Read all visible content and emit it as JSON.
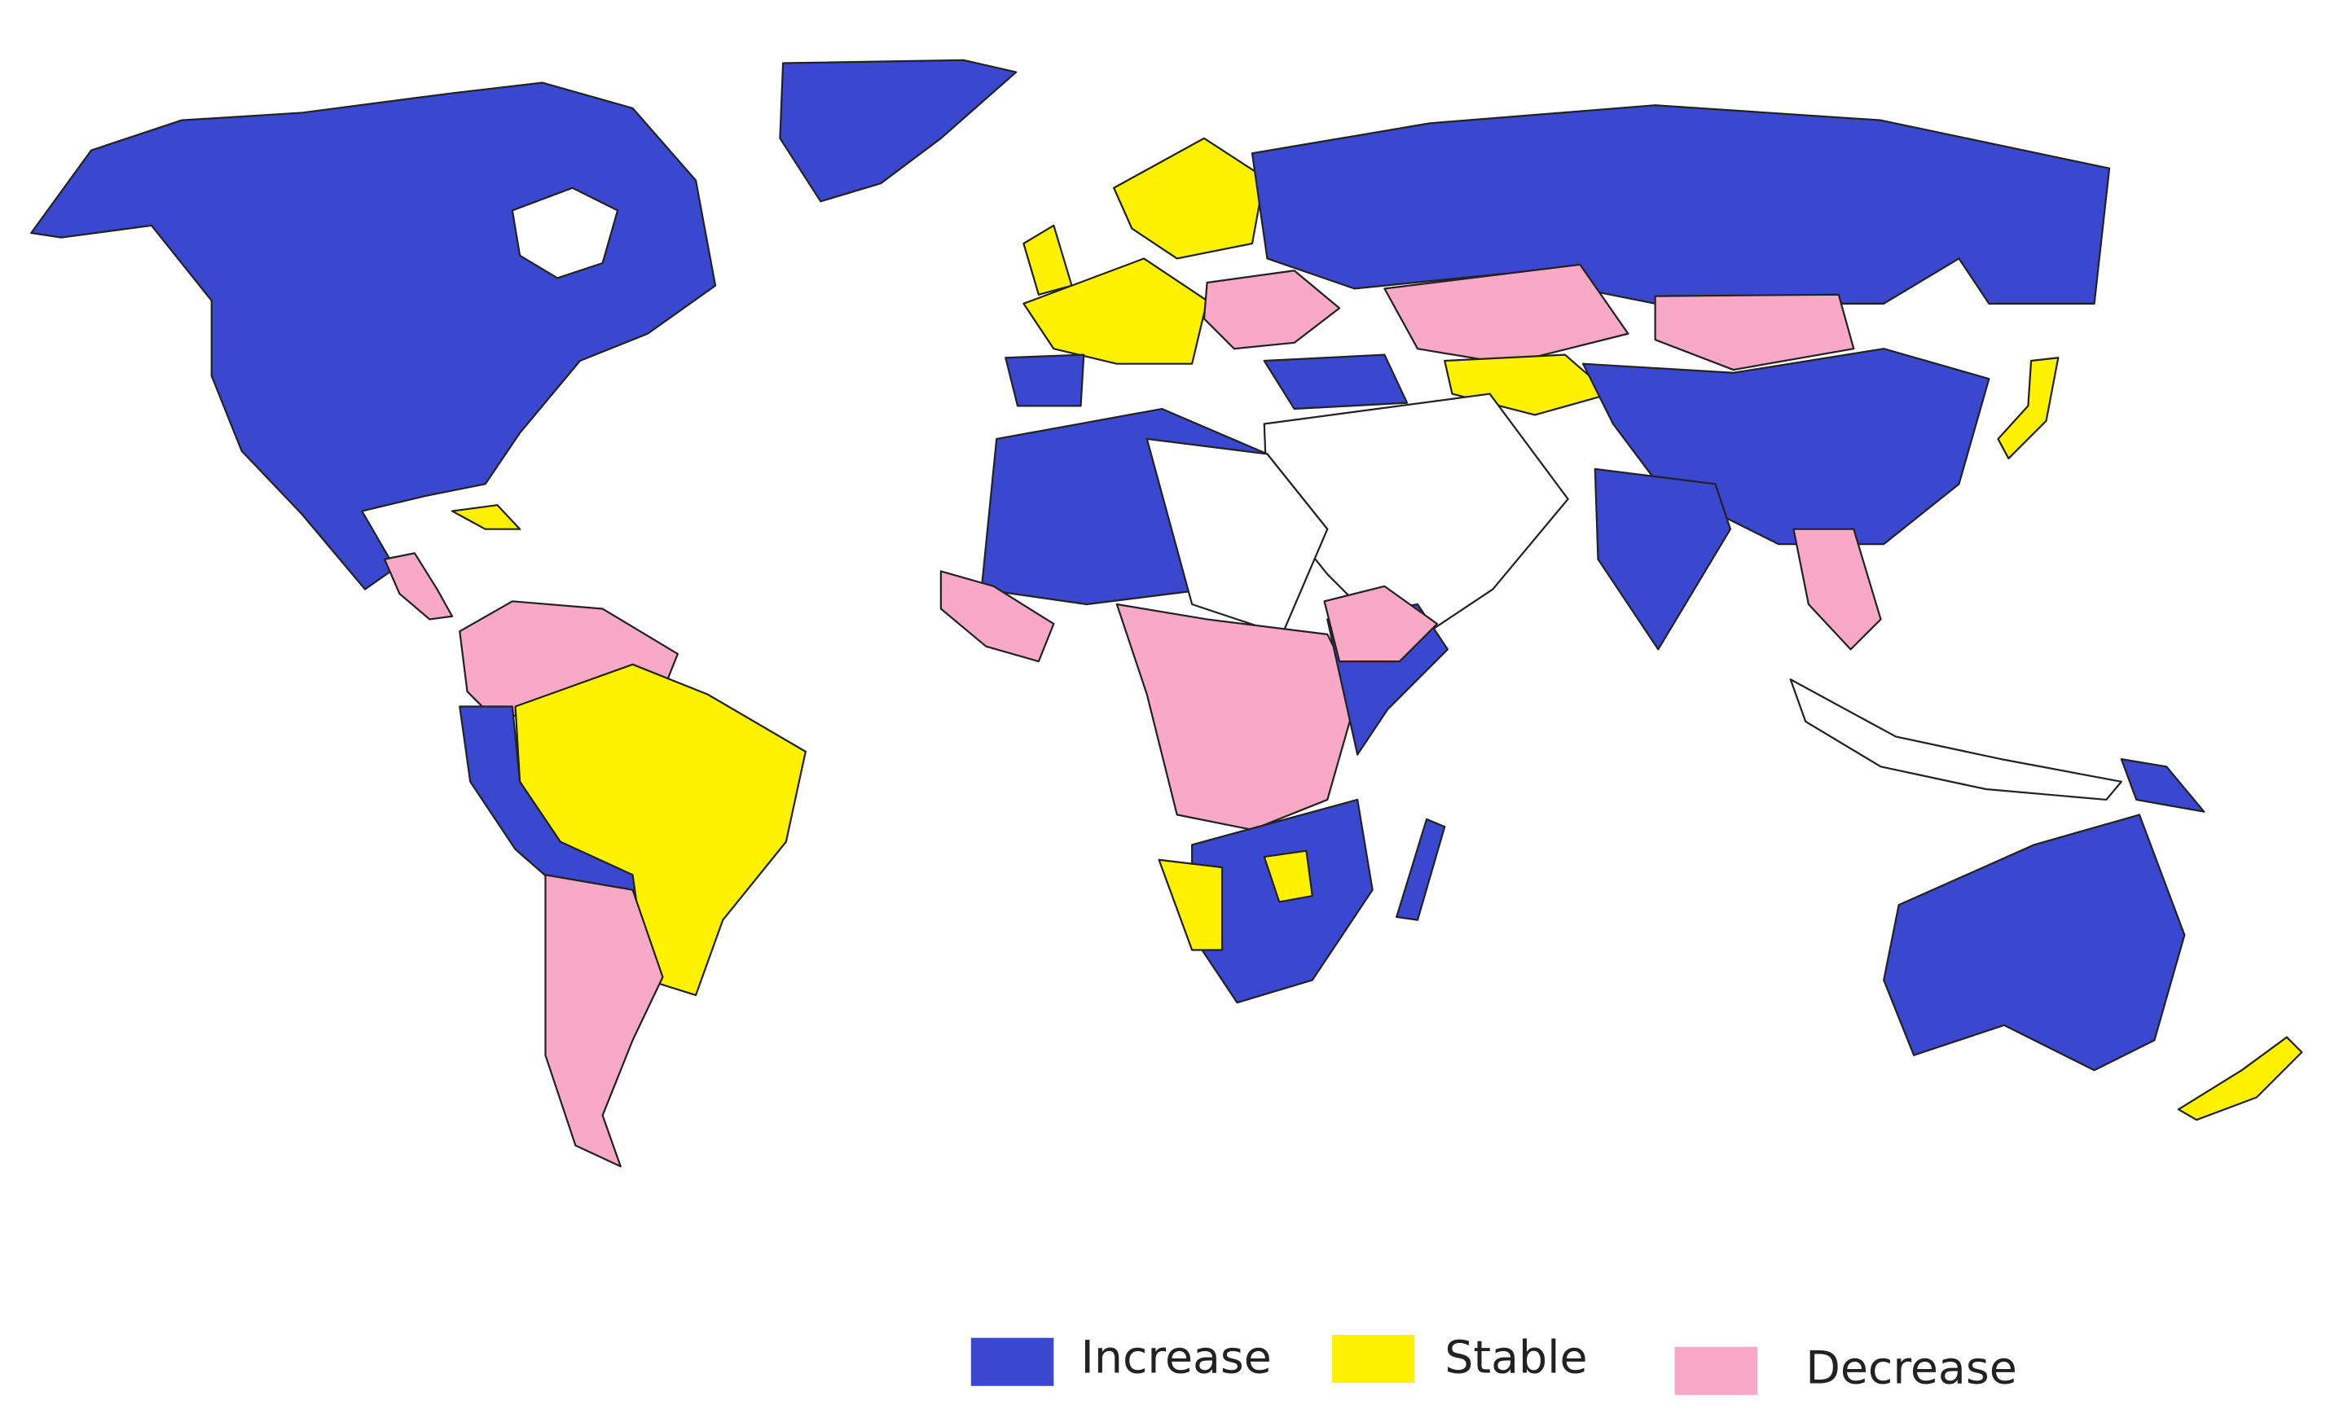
{
  "legend": {
    "items": [
      {
        "label": "Increase",
        "color": "#3a48d0"
      },
      {
        "label": "Stable",
        "color": "#fff200"
      },
      {
        "label": "Decrease",
        "color": "#f8a9c5"
      }
    ]
  }
}
